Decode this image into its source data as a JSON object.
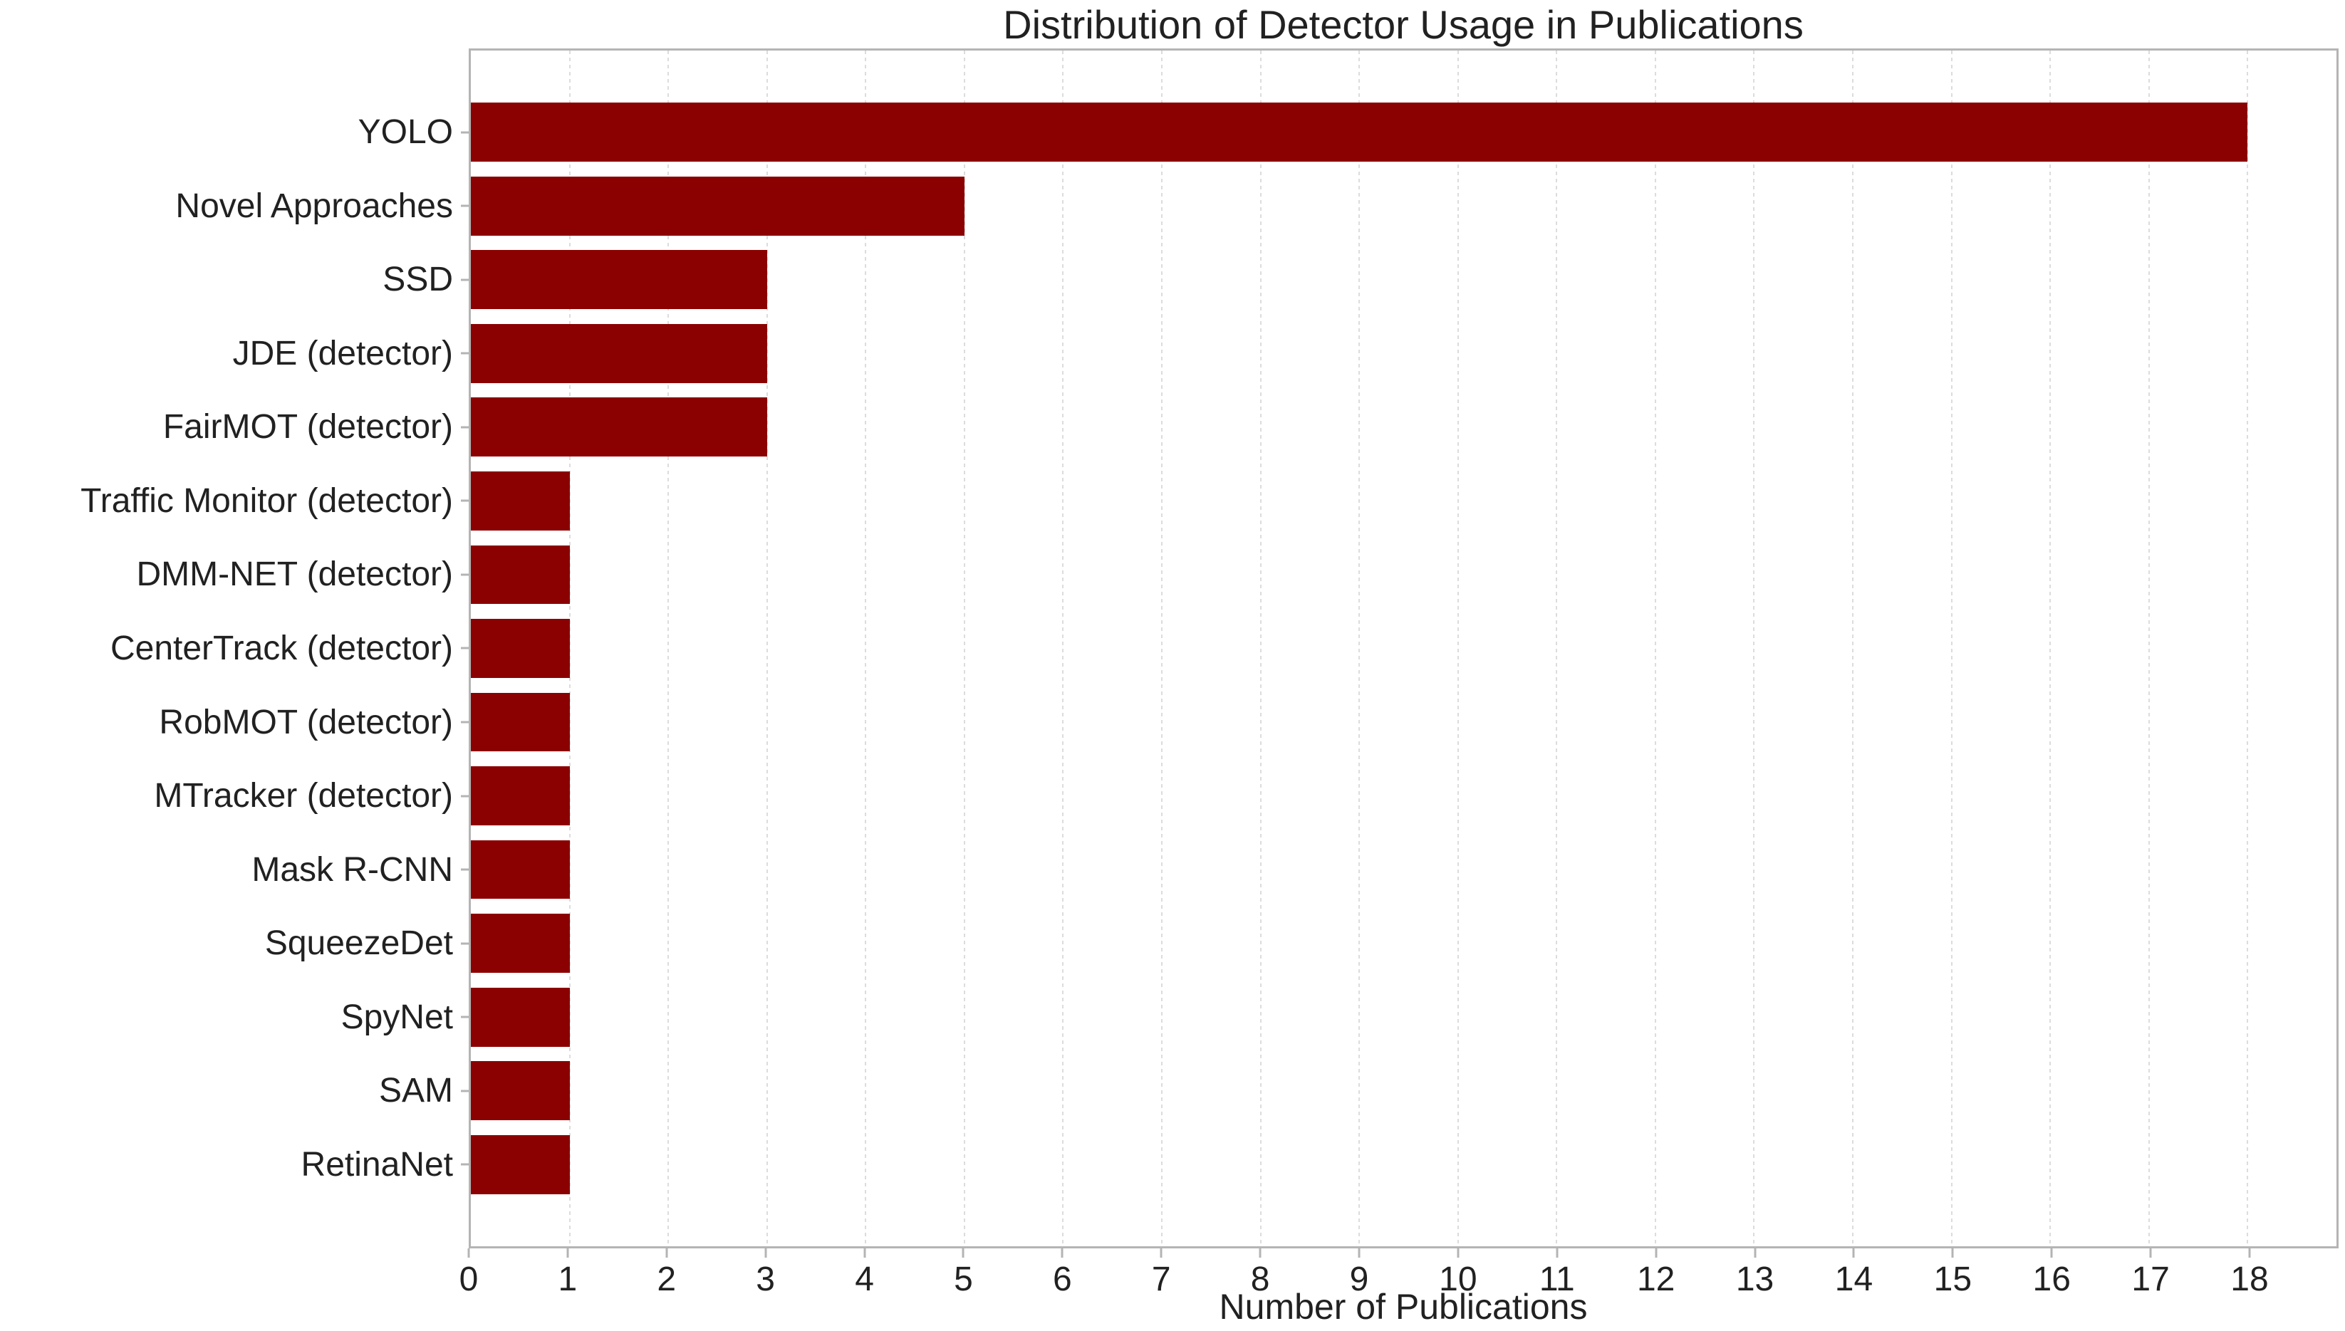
{
  "chart_data": {
    "type": "bar",
    "orientation": "horizontal",
    "title": "Distribution of Detector Usage in Publications",
    "xlabel": "Number of Publications",
    "ylabel": "",
    "categories": [
      "YOLO",
      "Novel Approaches",
      "SSD",
      "JDE (detector)",
      "FairMOT (detector)",
      "Traffic Monitor (detector)",
      "DMM-NET (detector)",
      "CenterTrack (detector)",
      "RobMOT (detector)",
      "MTracker (detector)",
      "Mask R-CNN",
      "SqueezeDet",
      "SpyNet",
      "SAM",
      "RetinaNet"
    ],
    "values": [
      18,
      5,
      3,
      3,
      3,
      1,
      1,
      1,
      1,
      1,
      1,
      1,
      1,
      1,
      1
    ],
    "xticks": [
      0,
      1,
      2,
      3,
      4,
      5,
      6,
      7,
      8,
      9,
      10,
      11,
      12,
      13,
      14,
      15,
      16,
      17,
      18
    ],
    "xlim": [
      0,
      18.9
    ],
    "grid": "vertical-dashed",
    "legend": "none",
    "bar_height_fraction": 0.8
  },
  "colors": {
    "bar": "#8B0000",
    "background": "#ffffff",
    "spine": "#b4b4b4",
    "gridline": "#dcdcdc",
    "text": "#212121"
  }
}
